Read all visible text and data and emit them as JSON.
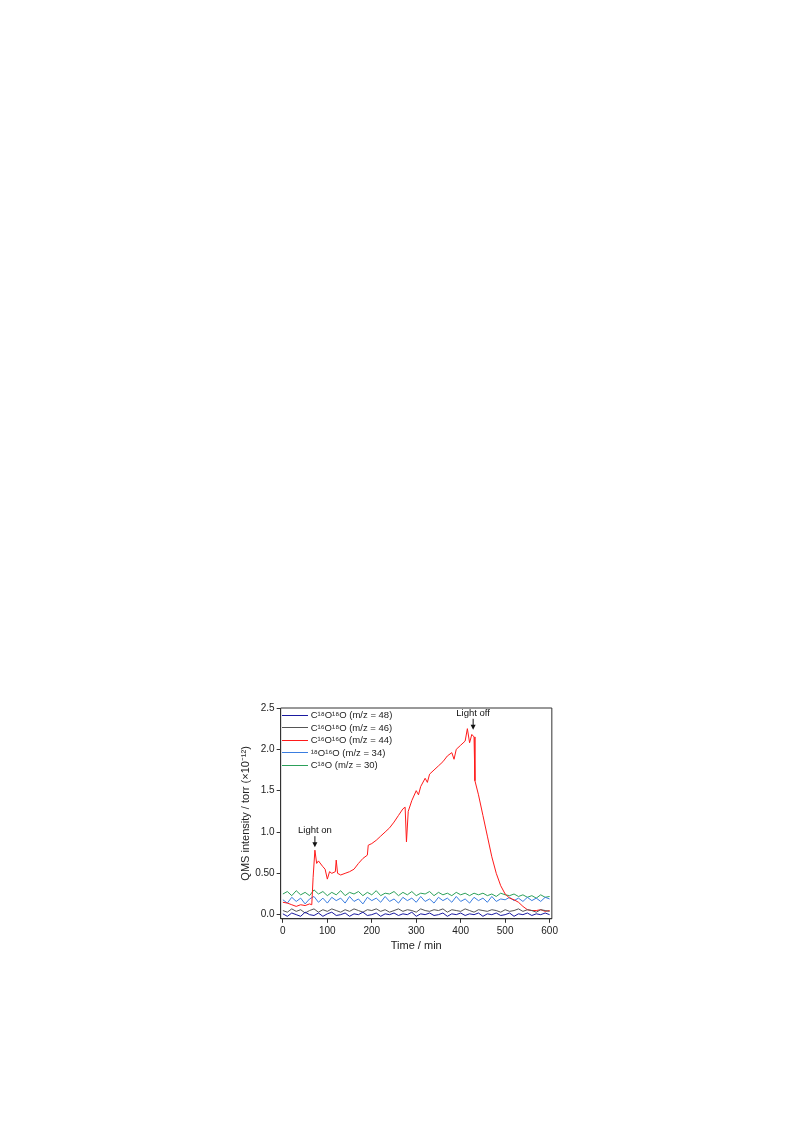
{
  "chart_data": {
    "type": "line",
    "xlabel": "Time / min",
    "ylabel": "QMS intensity / torr (×10⁻¹²)",
    "x": [
      0,
      10,
      20,
      30,
      40,
      50,
      60,
      70,
      80,
      90,
      100,
      110,
      120,
      130,
      140,
      150,
      160,
      170,
      180,
      190,
      200,
      210,
      220,
      230,
      240,
      250,
      260,
      270,
      280,
      290,
      300,
      310,
      320,
      330,
      340,
      350,
      360,
      370,
      380,
      390,
      400,
      410,
      420,
      430,
      440,
      450,
      460,
      470,
      480,
      490,
      500,
      510,
      520,
      530,
      540,
      550,
      560,
      570,
      580,
      590,
      600
    ],
    "xlim": [
      -5,
      605
    ],
    "xticks": [
      0,
      100,
      200,
      300,
      400,
      500,
      600
    ],
    "ylim": [
      -0.05,
      2.5
    ],
    "yticks": [
      {
        "value": 0,
        "label": "0.0"
      },
      {
        "value": 0.5,
        "label": "0.50"
      },
      {
        "value": 1,
        "label": "1.0"
      },
      {
        "value": 1.5,
        "label": "1.5"
      },
      {
        "value": 2,
        "label": "2.0"
      },
      {
        "value": 2.5,
        "label": "2.5"
      }
    ],
    "grid": false,
    "legend": "top left",
    "marker": "none",
    "line_style": "solid",
    "series": [
      {
        "name": "C¹⁸O¹⁸O (m/z = 48)",
        "color": "#1a1aa0",
        "values": [
          0.01,
          -0.02,
          0.02,
          0.0,
          -0.02,
          0.03,
          0.0,
          -0.01,
          0.02,
          -0.02,
          0.01,
          0.03,
          -0.01,
          0.0,
          0.02,
          -0.02,
          0.01,
          0.0,
          0.03,
          -0.01,
          0.0,
          0.02,
          -0.02,
          0.01,
          0.0,
          0.02,
          -0.01,
          0.01,
          0.0,
          0.03,
          -0.02,
          0.01,
          0.0,
          0.02,
          -0.01,
          0.0,
          0.02,
          -0.02,
          0.01,
          0.0,
          0.02,
          -0.01,
          0.01,
          0.0,
          0.02,
          -0.02,
          0.01,
          0.0,
          0.02,
          -0.01,
          0.0,
          0.02,
          -0.02,
          0.01,
          0.0,
          0.02,
          -0.01,
          0.01,
          0.0,
          0.02,
          0.0
        ]
      },
      {
        "name": "C¹⁶O¹⁸O (m/z = 46)",
        "color": "#555555",
        "values": [
          0.05,
          0.03,
          0.07,
          0.04,
          0.06,
          0.02,
          0.05,
          0.07,
          0.03,
          0.06,
          0.04,
          0.07,
          0.05,
          0.03,
          0.06,
          0.04,
          0.07,
          0.05,
          0.03,
          0.06,
          0.05,
          0.07,
          0.04,
          0.06,
          0.03,
          0.05,
          0.07,
          0.04,
          0.06,
          0.05,
          0.03,
          0.07,
          0.05,
          0.04,
          0.06,
          0.05,
          0.07,
          0.03,
          0.06,
          0.05,
          0.04,
          0.07,
          0.05,
          0.03,
          0.06,
          0.05,
          0.04,
          0.06,
          0.05,
          0.03,
          0.06,
          0.04,
          0.05,
          0.07,
          0.04,
          0.06,
          0.05,
          0.03,
          0.06,
          0.05,
          0.04
        ]
      },
      {
        "name": "C¹⁶O¹⁶O (m/z = 44)",
        "color": "#ff1a1a",
        "x": [
          0,
          10,
          20,
          30,
          40,
          50,
          60,
          65,
          68,
          72,
          76,
          80,
          90,
          95,
          100,
          105,
          110,
          118,
          120,
          123,
          130,
          140,
          150,
          160,
          170,
          180,
          190,
          192,
          200,
          210,
          220,
          230,
          240,
          250,
          260,
          270,
          275,
          278,
          282,
          290,
          300,
          305,
          310,
          320,
          325,
          330,
          340,
          350,
          360,
          370,
          380,
          385,
          390,
          400,
          410,
          415,
          420,
          425,
          430,
          432,
          440,
          450,
          460,
          470,
          480,
          490,
          500,
          510,
          520,
          530,
          540,
          550,
          560,
          570,
          580,
          590,
          600
        ],
        "values": [
          0.15,
          0.14,
          0.12,
          0.1,
          0.12,
          0.11,
          0.13,
          0.12,
          0.45,
          0.78,
          0.62,
          0.65,
          0.58,
          0.55,
          0.43,
          0.52,
          0.5,
          0.52,
          0.66,
          0.5,
          0.48,
          0.5,
          0.52,
          0.55,
          0.62,
          0.68,
          0.72,
          0.84,
          0.86,
          0.9,
          0.95,
          1.0,
          1.05,
          1.12,
          1.2,
          1.28,
          1.3,
          0.88,
          1.25,
          1.38,
          1.5,
          1.45,
          1.55,
          1.65,
          1.6,
          1.7,
          1.75,
          1.8,
          1.85,
          1.92,
          1.96,
          1.88,
          2.0,
          2.05,
          2.1,
          2.25,
          2.08,
          2.18,
          2.15,
          1.62,
          1.45,
          1.2,
          0.95,
          0.7,
          0.5,
          0.35,
          0.25,
          0.2,
          0.18,
          0.15,
          0.1,
          0.06,
          0.05,
          0.05,
          0.06,
          0.04,
          0.05
        ]
      },
      {
        "name": "¹⁸O¹⁶O (m/z = 34)",
        "color": "#3a7de0",
        "values": [
          0.18,
          0.14,
          0.21,
          0.16,
          0.2,
          0.13,
          0.19,
          0.22,
          0.15,
          0.2,
          0.14,
          0.21,
          0.17,
          0.2,
          0.14,
          0.22,
          0.16,
          0.19,
          0.13,
          0.21,
          0.17,
          0.2,
          0.15,
          0.22,
          0.16,
          0.19,
          0.14,
          0.21,
          0.17,
          0.2,
          0.15,
          0.22,
          0.16,
          0.19,
          0.14,
          0.21,
          0.17,
          0.2,
          0.15,
          0.22,
          0.16,
          0.19,
          0.14,
          0.21,
          0.17,
          0.2,
          0.15,
          0.22,
          0.16,
          0.19,
          0.18,
          0.21,
          0.17,
          0.2,
          0.16,
          0.21,
          0.17,
          0.2,
          0.16,
          0.21,
          0.19
        ]
      },
      {
        "name": "C¹⁸O (m/z = 30)",
        "color": "#2ca05a",
        "values": [
          0.25,
          0.28,
          0.23,
          0.29,
          0.24,
          0.27,
          0.23,
          0.3,
          0.25,
          0.28,
          0.23,
          0.27,
          0.24,
          0.29,
          0.23,
          0.27,
          0.25,
          0.28,
          0.23,
          0.27,
          0.24,
          0.29,
          0.23,
          0.26,
          0.25,
          0.28,
          0.23,
          0.27,
          0.24,
          0.28,
          0.23,
          0.26,
          0.25,
          0.28,
          0.23,
          0.27,
          0.24,
          0.26,
          0.23,
          0.27,
          0.24,
          0.26,
          0.23,
          0.26,
          0.24,
          0.26,
          0.23,
          0.25,
          0.22,
          0.26,
          0.24,
          0.23,
          0.25,
          0.22,
          0.24,
          0.21,
          0.23,
          0.2,
          0.24,
          0.21,
          0.22
        ]
      }
    ],
    "annotations": [
      {
        "text": "Light on",
        "x": 72,
        "y": 0.78
      },
      {
        "text": "Light off",
        "x": 428,
        "y": 2.2
      }
    ]
  }
}
